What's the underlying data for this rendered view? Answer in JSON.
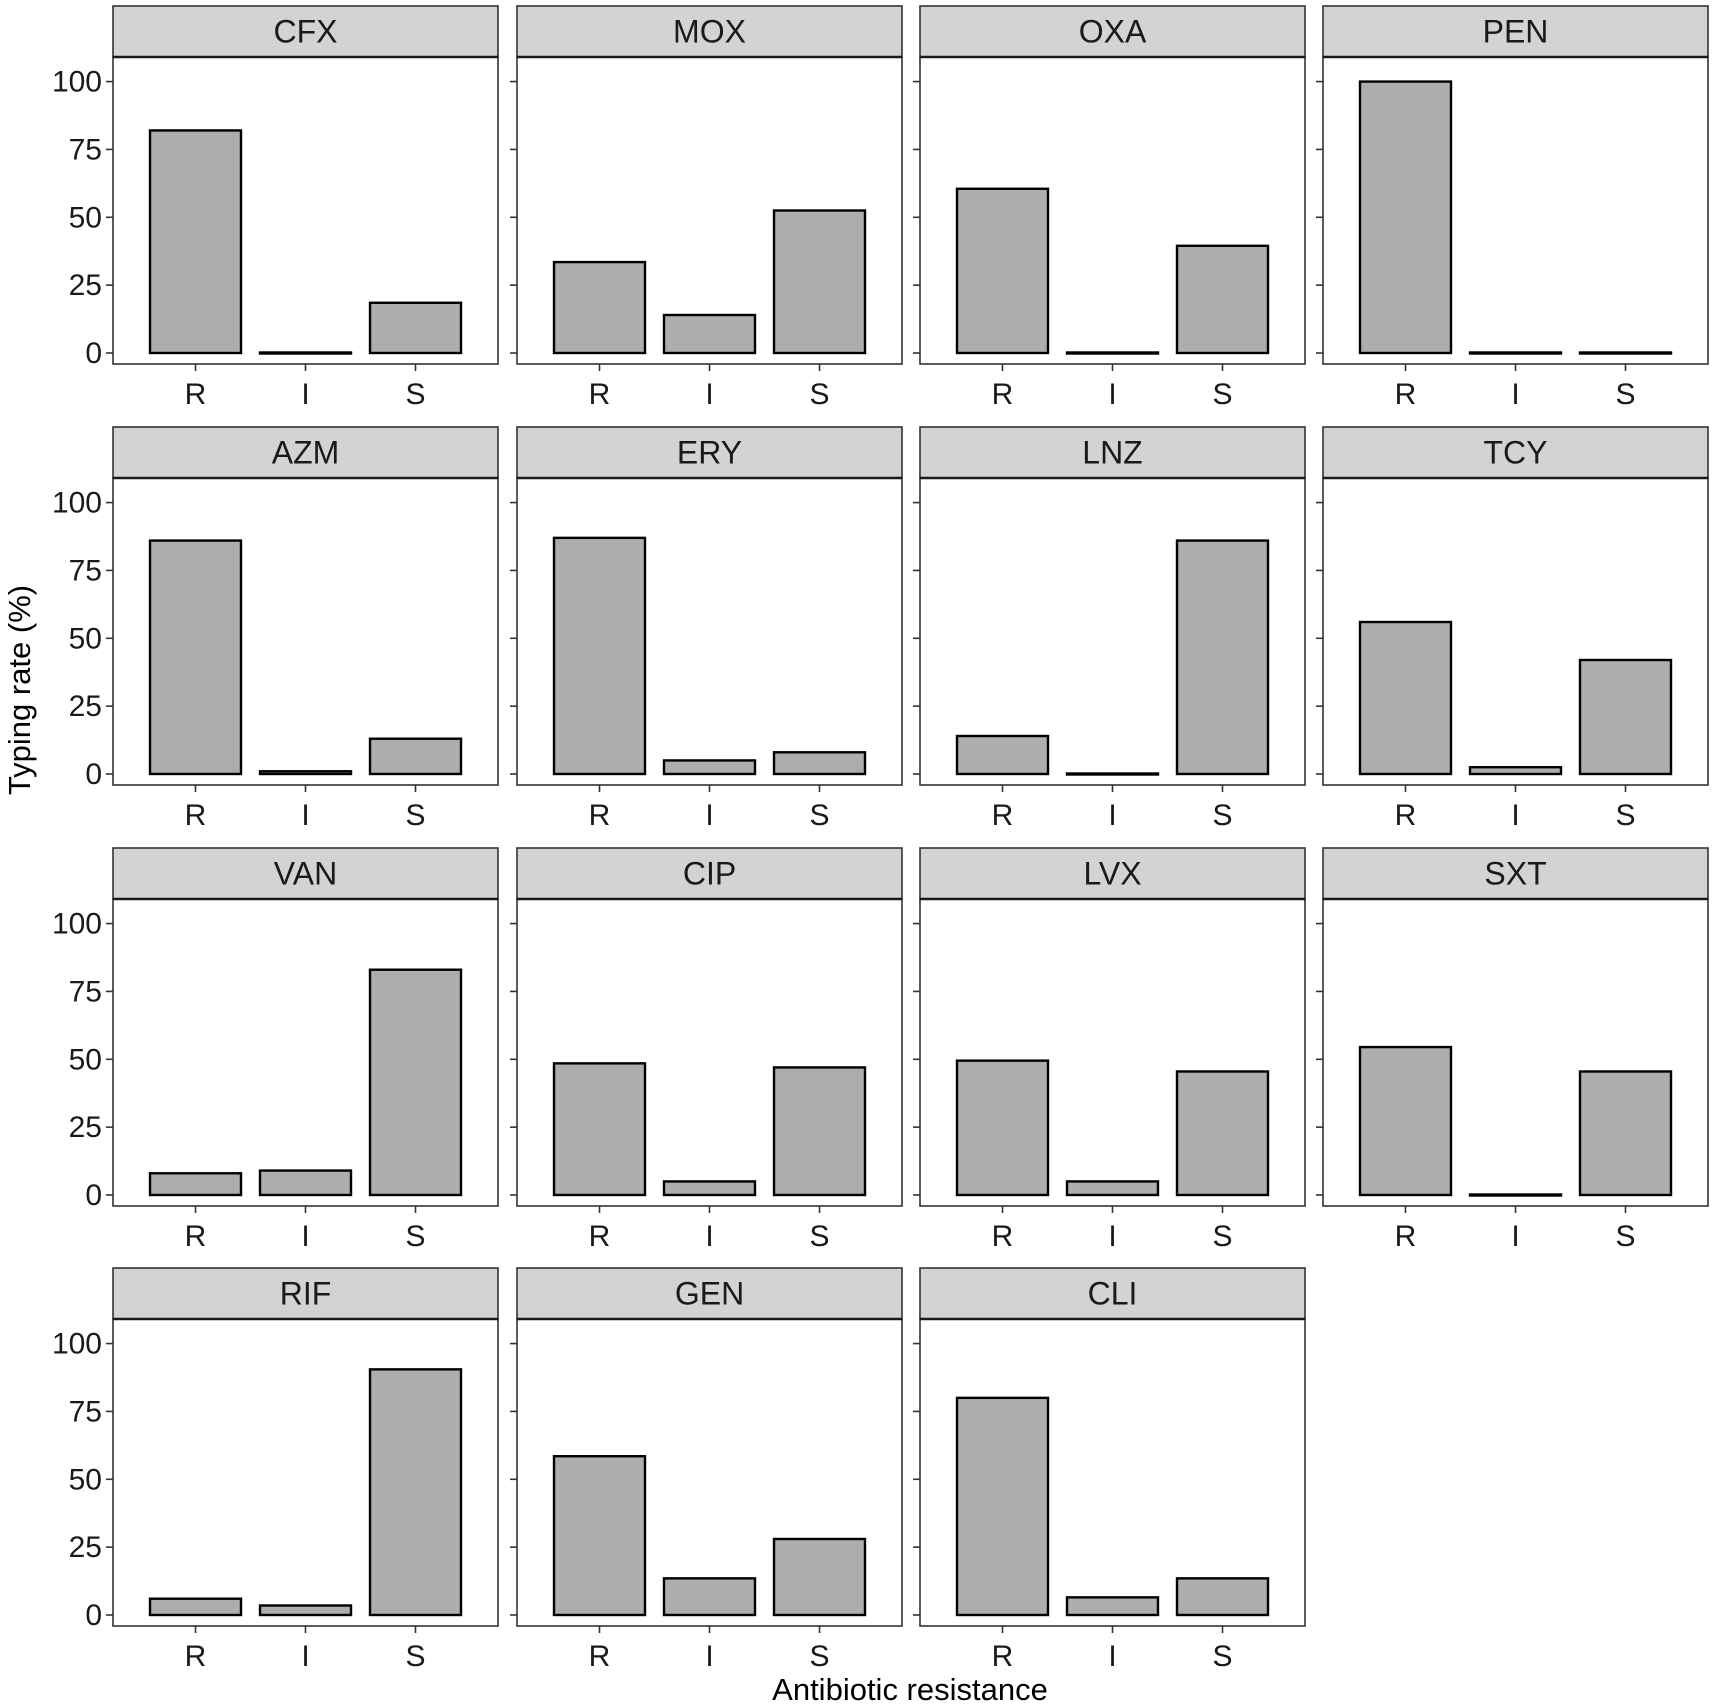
{
  "chart_data": {
    "type": "bar",
    "xlabel": "Antibiotic resistance",
    "ylabel": "Typing rate (%)",
    "categories": [
      "R",
      "I",
      "S"
    ],
    "ylim": [
      0,
      105
    ],
    "yticks": [
      0,
      25,
      50,
      75,
      100
    ],
    "bar_fill": "#adadad",
    "strip_fill": "#d3d3d3",
    "panels": [
      {
        "title": "CFX",
        "values": [
          82,
          0,
          18.5
        ]
      },
      {
        "title": "MOX",
        "values": [
          33.5,
          14,
          52.5
        ]
      },
      {
        "title": "OXA",
        "values": [
          60.5,
          0,
          39.5
        ]
      },
      {
        "title": "PEN",
        "values": [
          100,
          0,
          0
        ]
      },
      {
        "title": "AZM",
        "values": [
          86,
          1,
          13
        ]
      },
      {
        "title": "ERY",
        "values": [
          87,
          5,
          8
        ]
      },
      {
        "title": "LNZ",
        "values": [
          14,
          0,
          86
        ]
      },
      {
        "title": "TCY",
        "values": [
          56,
          2.5,
          42
        ]
      },
      {
        "title": "VAN",
        "values": [
          8,
          9,
          83
        ]
      },
      {
        "title": "CIP",
        "values": [
          48.5,
          5,
          47
        ]
      },
      {
        "title": "LVX",
        "values": [
          49.5,
          5,
          45.5
        ]
      },
      {
        "title": "SXT",
        "values": [
          54.5,
          0,
          45.5
        ]
      },
      {
        "title": "RIF",
        "values": [
          6,
          3.5,
          90.5
        ]
      },
      {
        "title": "GEN",
        "values": [
          58.5,
          13.5,
          28
        ]
      },
      {
        "title": "CLI",
        "values": [
          80,
          6.5,
          13.5
        ]
      }
    ]
  }
}
